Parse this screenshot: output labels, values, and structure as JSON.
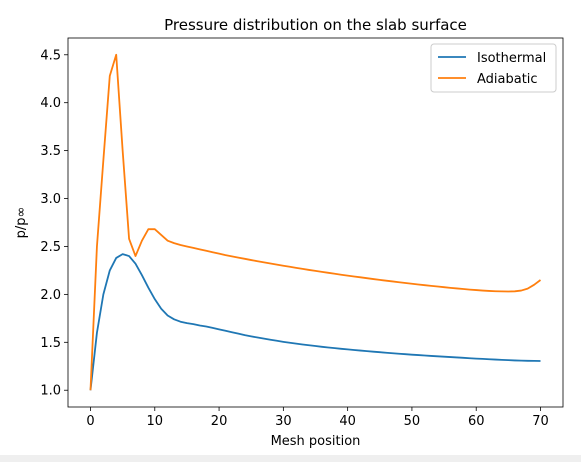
{
  "chart_data": {
    "type": "line",
    "title": "Pressure distribution on the slab surface",
    "xlabel": "Mesh position",
    "ylabel": "p/p∞",
    "xlim": [
      -3.5,
      73.5
    ],
    "ylim": [
      0.825,
      4.675
    ],
    "xticks": [
      0,
      10,
      20,
      30,
      40,
      50,
      60,
      70
    ],
    "yticks": [
      1.0,
      1.5,
      2.0,
      2.5,
      3.0,
      3.5,
      4.0,
      4.5
    ],
    "ytick_labels": [
      "1.0",
      "1.5",
      "2.0",
      "2.5",
      "3.0",
      "3.5",
      "4.0",
      "4.5"
    ],
    "grid": false,
    "legend_position": "top-right",
    "series": [
      {
        "name": "Isothermal",
        "color": "#1f77b4",
        "x": [
          0,
          1,
          2,
          3,
          4,
          5,
          6,
          7,
          8,
          9,
          10,
          11,
          12,
          13,
          14,
          15,
          16,
          17,
          18,
          19,
          20,
          21,
          22,
          23,
          24,
          25,
          26,
          27,
          28,
          29,
          30,
          31,
          32,
          33,
          34,
          35,
          36,
          37,
          38,
          39,
          40,
          41,
          42,
          43,
          44,
          45,
          46,
          47,
          48,
          49,
          50,
          51,
          52,
          53,
          54,
          55,
          56,
          57,
          58,
          59,
          60,
          61,
          62,
          63,
          64,
          65,
          66,
          67,
          68,
          69,
          70
        ],
        "y": [
          1.0,
          1.6,
          2.0,
          2.25,
          2.38,
          2.42,
          2.4,
          2.32,
          2.2,
          2.07,
          1.95,
          1.85,
          1.78,
          1.74,
          1.715,
          1.7,
          1.69,
          1.675,
          1.665,
          1.65,
          1.635,
          1.62,
          1.605,
          1.59,
          1.575,
          1.562,
          1.55,
          1.538,
          1.527,
          1.516,
          1.505,
          1.495,
          1.486,
          1.477,
          1.469,
          1.461,
          1.453,
          1.446,
          1.439,
          1.432,
          1.426,
          1.42,
          1.414,
          1.408,
          1.402,
          1.397,
          1.391,
          1.386,
          1.381,
          1.376,
          1.371,
          1.367,
          1.362,
          1.358,
          1.354,
          1.35,
          1.346,
          1.342,
          1.338,
          1.334,
          1.33,
          1.327,
          1.323,
          1.32,
          1.317,
          1.314,
          1.311,
          1.309,
          1.307,
          1.306,
          1.305
        ]
      },
      {
        "name": "Adiabatic",
        "color": "#ff7f0e",
        "x": [
          0,
          1,
          2,
          3,
          4,
          5,
          6,
          7,
          8,
          9,
          10,
          11,
          12,
          13,
          14,
          15,
          16,
          17,
          18,
          19,
          20,
          21,
          22,
          23,
          24,
          25,
          26,
          27,
          28,
          29,
          30,
          31,
          32,
          33,
          34,
          35,
          36,
          37,
          38,
          39,
          40,
          41,
          42,
          43,
          44,
          45,
          46,
          47,
          48,
          49,
          50,
          51,
          52,
          53,
          54,
          55,
          56,
          57,
          58,
          59,
          60,
          61,
          62,
          63,
          64,
          65,
          66,
          67,
          68,
          69,
          70
        ],
        "y": [
          1.0,
          2.5,
          3.4,
          4.28,
          4.5,
          3.5,
          2.58,
          2.4,
          2.56,
          2.68,
          2.68,
          2.62,
          2.56,
          2.535,
          2.515,
          2.5,
          2.485,
          2.47,
          2.455,
          2.44,
          2.425,
          2.41,
          2.397,
          2.384,
          2.371,
          2.358,
          2.346,
          2.334,
          2.322,
          2.31,
          2.299,
          2.288,
          2.277,
          2.266,
          2.255,
          2.245,
          2.235,
          2.225,
          2.215,
          2.205,
          2.196,
          2.187,
          2.178,
          2.169,
          2.16,
          2.151,
          2.143,
          2.135,
          2.127,
          2.119,
          2.111,
          2.103,
          2.096,
          2.089,
          2.082,
          2.075,
          2.068,
          2.062,
          2.056,
          2.05,
          2.045,
          2.04,
          2.036,
          2.033,
          2.031,
          2.03,
          2.032,
          2.04,
          2.06,
          2.1,
          2.15
        ]
      }
    ]
  }
}
